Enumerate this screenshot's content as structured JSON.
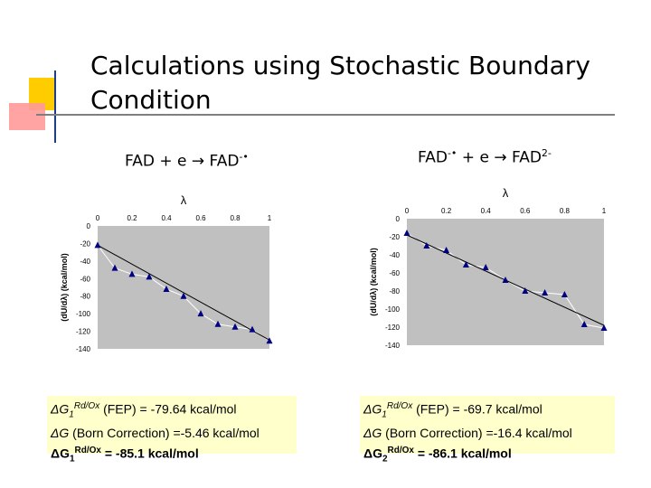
{
  "title": {
    "line1": "Calculations using Stochastic Boundary",
    "line2": "Condition"
  },
  "left": {
    "reaction": {
      "lhs": "FAD + e",
      "arrow": "→",
      "rhs": "FAD",
      "sup": "-•"
    },
    "results": {
      "line1": {
        "delta": "ΔG",
        "sub": "1",
        "sup": "Rd/Ox",
        "rest": " (FEP) = -79.64 kcal/mol"
      },
      "line2": {
        "delta": "ΔG",
        "rest": " (Born Correction) =-5.46 kcal/mol"
      },
      "line3": {
        "delta": "ΔG",
        "sub": "1",
        "sup": "Rd/Ox",
        "rest": " = -85.1 kcal/mol"
      }
    }
  },
  "right": {
    "reaction": {
      "lhs": "FAD",
      "lhs_sup": "-•",
      "mid": " + e",
      "arrow": "→",
      "rhs": "FAD",
      "rhs_sup": "2-"
    },
    "results": {
      "line1": {
        "delta": "ΔG",
        "sub": "1",
        "sup": "Rd/Ox",
        "rest": " (FEP) = -69.7 kcal/mol"
      },
      "line2": {
        "delta": "ΔG",
        "rest": " (Born Correction) =-16.4 kcal/mol"
      },
      "line3": {
        "delta": "ΔG",
        "sub": "2",
        "sup": "Rd/Ox",
        "rest": " = -86.1 kcal/mol"
      }
    }
  },
  "chart_data": [
    {
      "type": "scatter",
      "title": "λ",
      "ylabel": "(dU/dλ) (kcal/mol)",
      "xlim": [
        0,
        1
      ],
      "ylim": [
        -140,
        0
      ],
      "xticks": [
        "0",
        "0.2",
        "0.4",
        "0.6",
        "0.8",
        "1"
      ],
      "yticks": [
        "0",
        "-20",
        "-40",
        "-60",
        "-80",
        "-100",
        "-120",
        "-140"
      ],
      "x": [
        0.0,
        0.1,
        0.2,
        0.3,
        0.4,
        0.5,
        0.6,
        0.7,
        0.8,
        0.9,
        1.0
      ],
      "y": [
        -22,
        -48,
        -55,
        -58,
        -72,
        -80,
        -100,
        -112,
        -115,
        -118,
        -131
      ],
      "trendline": {
        "x": [
          0,
          1
        ],
        "y": [
          -22,
          -130
        ]
      },
      "colors": {
        "plot_bg": "#c0c0c0",
        "marker": "#000080",
        "line": "#ffffff",
        "trend": "#000000"
      }
    },
    {
      "type": "scatter",
      "title": "λ",
      "ylabel": "(dU/dλ) (kcal/mol)",
      "xlim": [
        0,
        1
      ],
      "ylim": [
        -140,
        0
      ],
      "xticks": [
        "0",
        "0.2",
        "0.4",
        "0.6",
        "0.8",
        "1"
      ],
      "yticks": [
        "0",
        "-20",
        "-40",
        "-60",
        "-80",
        "-100",
        "-120",
        "-140"
      ],
      "x": [
        0.0,
        0.1,
        0.2,
        0.3,
        0.4,
        0.5,
        0.6,
        0.7,
        0.8,
        0.9,
        1.0
      ],
      "y": [
        -16,
        -30,
        -35,
        -51,
        -54,
        -68,
        -80,
        -82,
        -84,
        -117,
        -121
      ],
      "trendline": {
        "x": [
          0,
          1
        ],
        "y": [
          -18,
          -118
        ]
      },
      "colors": {
        "plot_bg": "#c0c0c0",
        "marker": "#000080",
        "line": "#ffffff",
        "trend": "#000000"
      }
    }
  ]
}
